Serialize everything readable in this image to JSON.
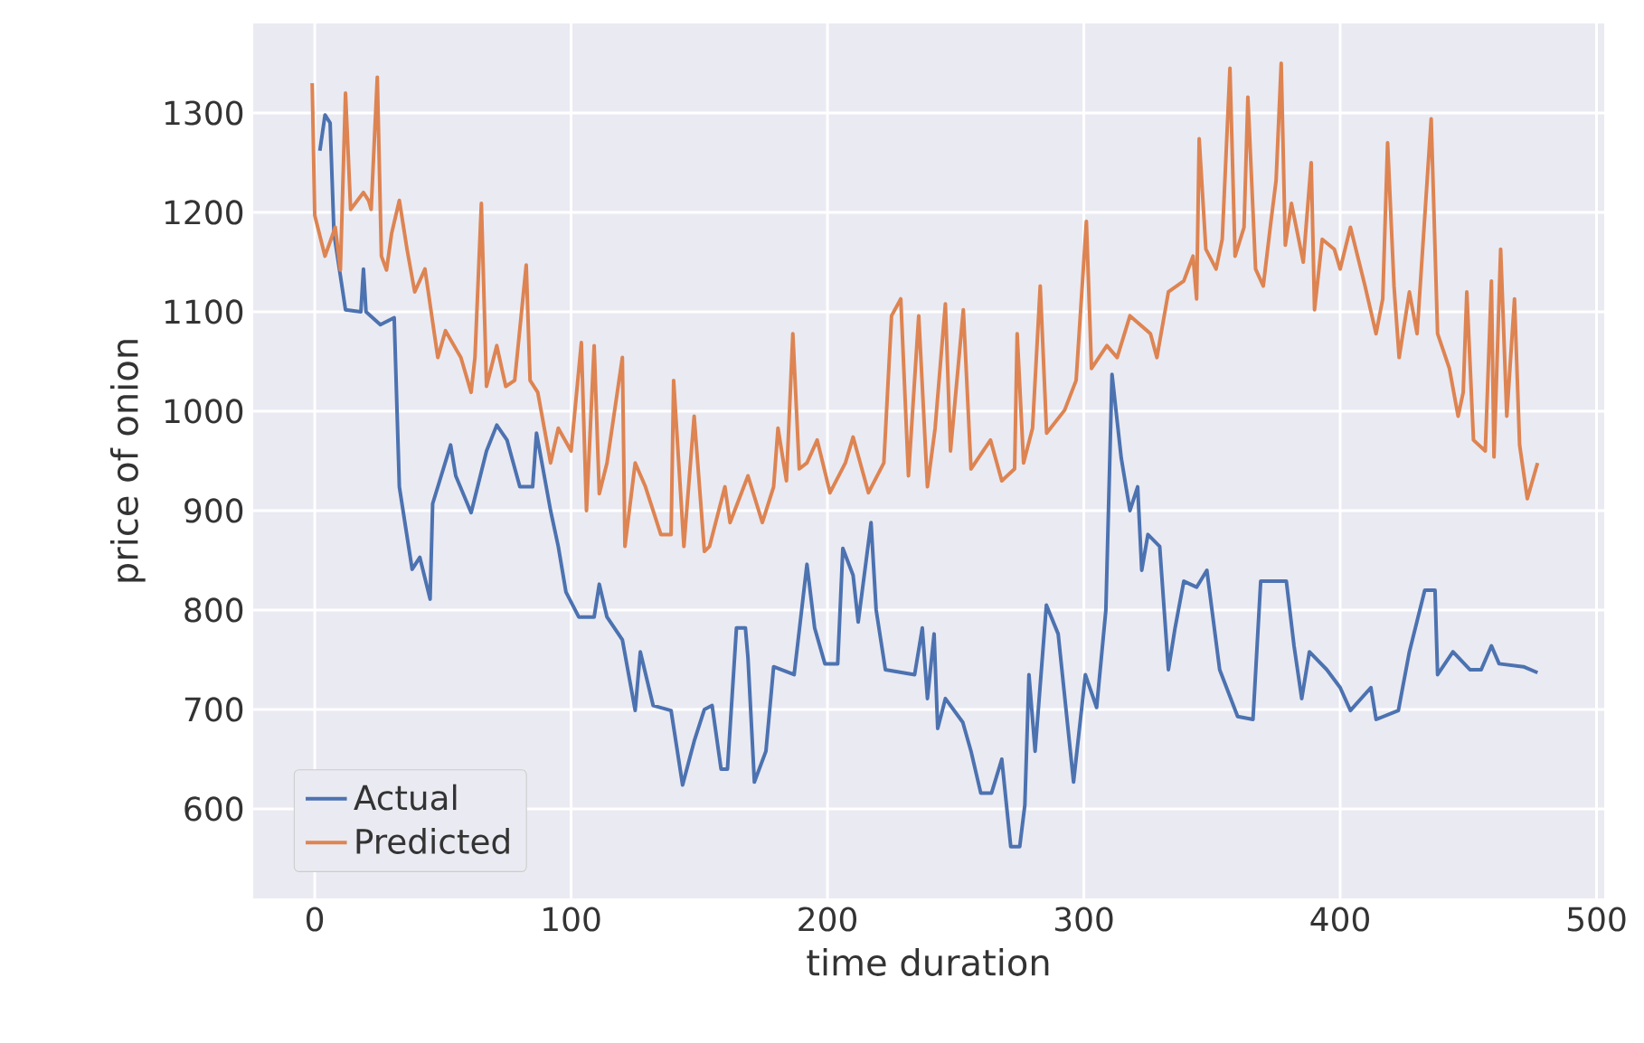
{
  "chart_data": {
    "type": "line",
    "xlabel": "time duration",
    "ylabel": "price of onion",
    "xlim": [
      -24,
      503
    ],
    "ylim": [
      510,
      1390
    ],
    "xticks": [
      0,
      100,
      200,
      300,
      400,
      500
    ],
    "yticks": [
      600,
      700,
      800,
      900,
      1000,
      1100,
      1200,
      1300
    ],
    "grid": true,
    "legend": "bottom left",
    "line_style": "solid",
    "marker": "none",
    "series": [
      {
        "name": "Actual",
        "color": "#4c72b0",
        "x": [
          2,
          4,
          6,
          7.5,
          12,
          18,
          19,
          20,
          25.6,
          31,
          33,
          38,
          41,
          45,
          46,
          53,
          55,
          61,
          67,
          71,
          75,
          80,
          85,
          86.5,
          92,
          95,
          98,
          103,
          109,
          111,
          114,
          120,
          125,
          127,
          132,
          139,
          143.5,
          148,
          152,
          155,
          158.5,
          161,
          164.5,
          168,
          169,
          171.5,
          176,
          179,
          187,
          192,
          195,
          199,
          204,
          206,
          210,
          212,
          217,
          219,
          222.6,
          234,
          237,
          239,
          241.6,
          243,
          246,
          252.8,
          256,
          259.8,
          264,
          268,
          271.5,
          275,
          277,
          278.6,
          281,
          285.4,
          290,
          296,
          300.6,
          305,
          308.6,
          311,
          314.6,
          318,
          321,
          322.6,
          325,
          329.6,
          333,
          335.6,
          339,
          344,
          348,
          353,
          360,
          366,
          369,
          379,
          382,
          385,
          388,
          394.8,
          400,
          404,
          412,
          414,
          422.7,
          427,
          433,
          437,
          438,
          444,
          450.6,
          455,
          459,
          462,
          471.5,
          477
        ],
        "values": [
          1262,
          1298,
          1290,
          1179,
          1102,
          1100,
          1143,
          1100,
          1087,
          1094,
          924,
          841,
          853,
          811,
          907,
          966,
          935,
          898,
          960,
          986,
          971,
          924,
          924,
          978,
          900,
          864,
          818,
          793,
          793,
          826,
          793,
          770,
          699,
          758,
          704,
          699,
          624,
          668,
          700,
          704,
          640,
          640,
          782,
          782,
          752,
          627,
          658,
          743,
          735,
          846,
          782,
          746,
          746,
          862,
          835,
          788,
          888,
          800,
          740,
          735,
          782,
          711,
          776,
          681,
          711,
          687,
          658,
          616,
          616,
          650,
          562,
          562,
          604,
          735,
          658,
          805,
          776,
          627,
          735,
          702,
          800,
          1037,
          953,
          900,
          924,
          840,
          876,
          864,
          740,
          782,
          829,
          823,
          840,
          740,
          693,
          690,
          829,
          829,
          764,
          711,
          758,
          740,
          722,
          699,
          722,
          690,
          699,
          758,
          820,
          820,
          735,
          758,
          740,
          740,
          764,
          746,
          743,
          737
        ]
      },
      {
        "name": "Predicted",
        "color": "#dd8452",
        "x": [
          -1,
          0,
          4,
          8,
          10,
          12,
          14,
          19,
          21,
          22,
          24.4,
          26,
          28,
          30,
          33,
          36,
          39,
          43,
          48,
          51,
          57,
          61,
          62.5,
          65,
          67,
          71,
          74.5,
          78,
          82.5,
          84,
          87,
          92,
          95,
          100,
          104,
          106,
          109,
          111,
          114,
          120,
          121,
          125,
          129,
          135,
          139,
          140,
          144,
          148,
          152,
          154,
          160,
          162,
          169,
          174.6,
          179,
          180.7,
          184,
          186.5,
          189,
          192,
          196,
          201,
          207,
          210,
          216,
          222,
          225,
          228.6,
          231.6,
          235.6,
          239,
          242,
          246,
          248,
          253,
          256,
          263.6,
          268,
          273,
          274,
          276.5,
          280,
          283,
          285.5,
          292.5,
          297,
          301,
          303,
          309,
          313,
          318,
          326,
          328.5,
          333,
          339,
          342.6,
          344,
          345,
          347.6,
          351.6,
          354,
          357,
          359,
          362.5,
          364,
          367,
          370,
          373,
          375,
          377,
          378.6,
          381,
          385.6,
          388.7,
          390,
          393,
          397.7,
          400,
          404,
          409.7,
          414,
          416.6,
          418.5,
          421,
          423,
          427,
          430,
          435.5,
          438,
          442.6,
          446,
          448,
          449.4,
          452,
          456.6,
          459,
          460,
          462.6,
          465,
          468,
          470,
          473,
          477
        ],
        "values": [
          1330,
          1197,
          1156,
          1185,
          1142,
          1320,
          1203,
          1220,
          1212,
          1203,
          1336,
          1156,
          1142,
          1179,
          1212,
          1163,
          1120,
          1143,
          1054,
          1081,
          1054,
          1019,
          1054,
          1209,
          1025,
          1066,
          1025,
          1031,
          1147,
          1031,
          1019,
          948,
          983,
          960,
          1069,
          900,
          1066,
          917,
          948,
          1054,
          864,
          948,
          924,
          876,
          876,
          1031,
          864,
          995,
          859,
          864,
          924,
          888,
          935,
          888,
          924,
          983,
          930,
          1078,
          942,
          948,
          971,
          918,
          948,
          974,
          918,
          948,
          1096,
          1113,
          935,
          1096,
          924,
          983,
          1108,
          960,
          1102,
          942,
          971,
          930,
          942,
          1078,
          948,
          983,
          1126,
          978,
          1001,
          1031,
          1191,
          1043,
          1066,
          1054,
          1096,
          1078,
          1054,
          1120,
          1131,
          1156,
          1113,
          1274,
          1163,
          1143,
          1173,
          1345,
          1156,
          1185,
          1316,
          1143,
          1126,
          1191,
          1232,
          1350,
          1167,
          1209,
          1150,
          1250,
          1102,
          1173,
          1163,
          1143,
          1185,
          1126,
          1078,
          1113,
          1270,
          1126,
          1054,
          1120,
          1078,
          1294,
          1078,
          1043,
          995,
          1019,
          1120,
          971,
          960,
          1131,
          954,
          1163,
          995,
          1113,
          966,
          912,
          948
        ]
      }
    ]
  }
}
